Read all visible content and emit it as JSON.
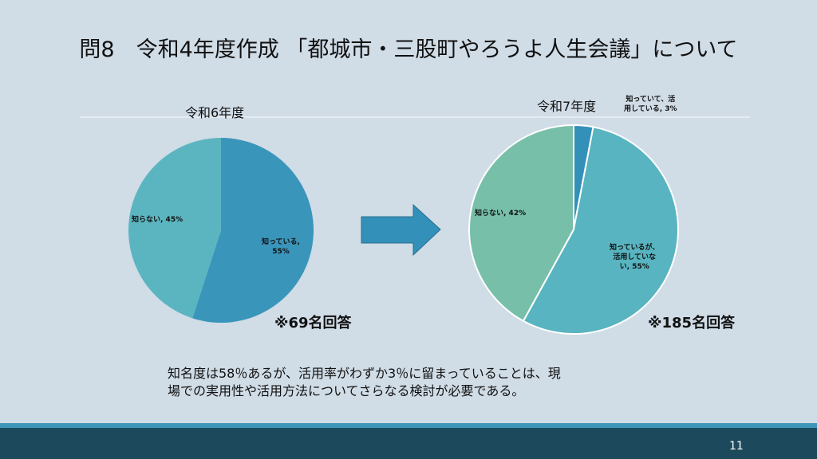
{
  "slide": {
    "title": "問8　令和4年度作成 「都城市・三股町やろうよ人生会議」について",
    "conclusion_line1": "知名度は58％あるが、活用率がわずか3％に留まっていることは、現",
    "conclusion_line2": "場での実用性や活用方法についてさらなる検討が必要である。",
    "page_number": "11",
    "arrow_icon": "right-arrow"
  },
  "chart_data": [
    {
      "type": "pie",
      "title": "令和6年度",
      "note": "※69名回答",
      "slices": [
        {
          "label": "知っている",
          "value": 55,
          "text": "知っている,",
          "pct": "55%",
          "color": "#3a95bb"
        },
        {
          "label": "知らない",
          "value": 45,
          "text": "知らない, 45%",
          "color": "#5bb5c1"
        }
      ]
    },
    {
      "type": "pie",
      "title": "令和7年度",
      "note": "※185名回答",
      "slices": [
        {
          "label": "知っていて、活用している",
          "value": 3,
          "text1": "知っていて、活",
          "text2": "用している, 3%",
          "color": "#3390b8"
        },
        {
          "label": "知っているが、活用していない",
          "value": 55,
          "text1": "知っているが、",
          "text2": "活用していな",
          "text3": "い, 55%",
          "color": "#58b4c0"
        },
        {
          "label": "知らない",
          "value": 42,
          "text": "知らない, 42%",
          "color": "#77bfa8"
        }
      ]
    }
  ]
}
